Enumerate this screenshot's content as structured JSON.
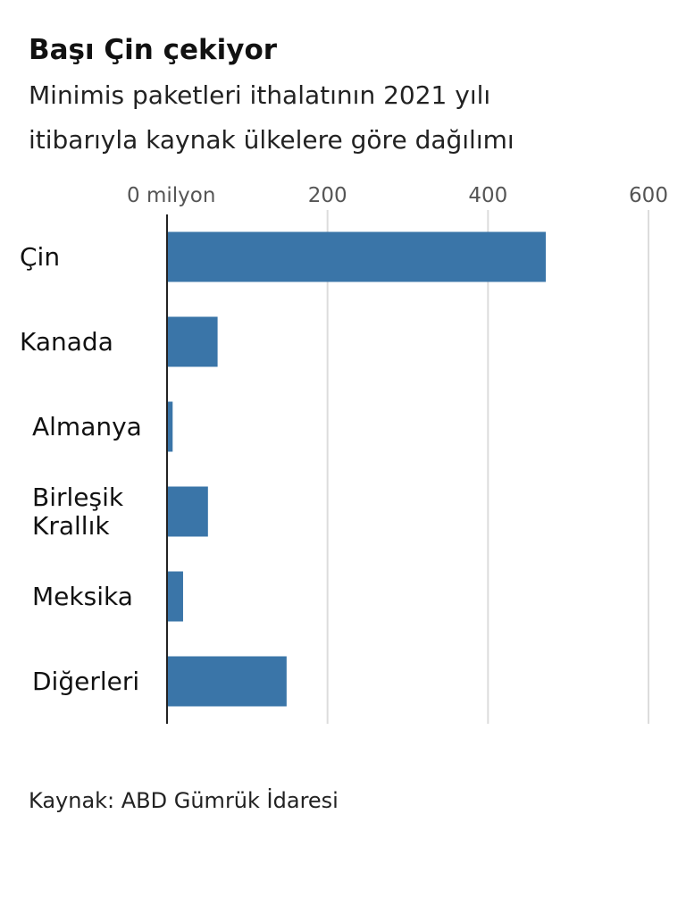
{
  "chart_data": {
    "type": "bar",
    "orientation": "horizontal",
    "title": "Başı Çin çekiyor",
    "subtitle": "Minimis paketleri ithalatının 2021 yılı itibarıyla kaynak ülkelere göre dağılımı",
    "categories": [
      "Çin",
      "Kanada",
      "Almanya",
      "Birleşik Krallık",
      "Meksika",
      "Diğerleri"
    ],
    "values": [
      472,
      63,
      7,
      51,
      20,
      149
    ],
    "color": "#3a75a8",
    "xlim": [
      0,
      600
    ],
    "xticks": [
      {
        "value": 0,
        "label": "0 milyon"
      },
      200,
      400,
      600
    ],
    "grid": true,
    "source": "Kaynak: ABD Gümrük İdaresi"
  }
}
